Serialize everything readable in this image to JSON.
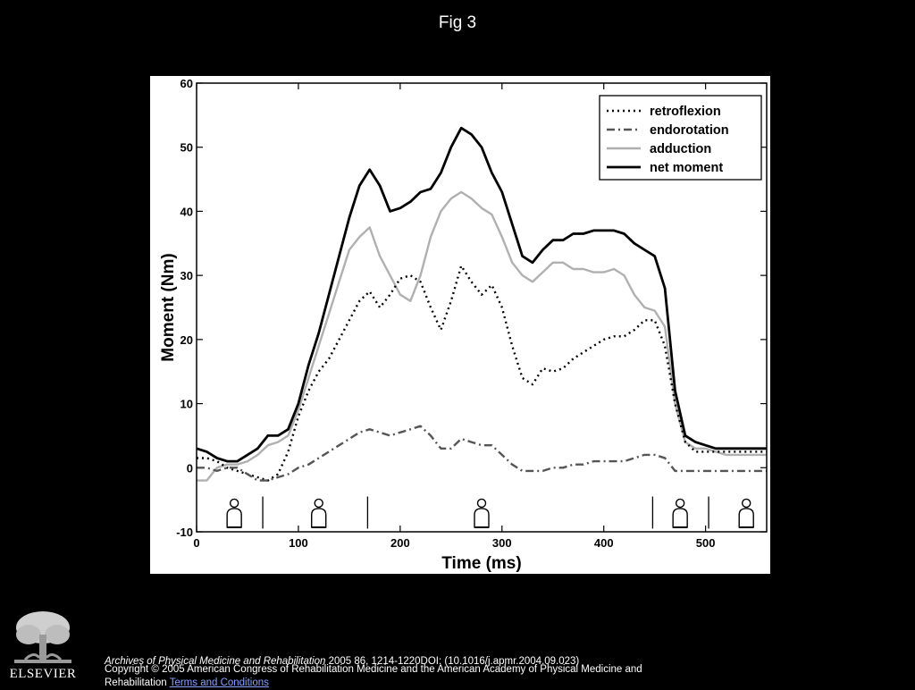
{
  "slide": {
    "title": "Fig 3"
  },
  "citation": {
    "journal": "Archives of Physical Medicine and Rehabilitation",
    "details": " 2005 86, 1214-1220DOI: (10.1016/j.apmr.2004.09.023)"
  },
  "copyright": {
    "text": "Copyright © 2005 American Congress of Rehabilitation Medicine and the American Academy of Physical Medicine and Rehabilitation ",
    "link_label": "Terms and Conditions"
  },
  "logo": {
    "word": "ELSEVIER"
  },
  "chart_data": {
    "type": "line",
    "xlabel": "Time (ms)",
    "ylabel": "Moment (Nm)",
    "xlim": [
      0,
      560
    ],
    "ylim": [
      -10,
      60
    ],
    "xticks": [
      0,
      100,
      200,
      300,
      400,
      500
    ],
    "yticks": [
      -10,
      0,
      10,
      20,
      30,
      40,
      50,
      60
    ],
    "grid": false,
    "legend_position": "top-right",
    "phase_markers_ms": [
      65,
      168,
      448,
      503
    ],
    "phase_figures_ms": [
      37,
      120,
      280,
      475,
      540
    ],
    "series": [
      {
        "name": "retroflexion",
        "style": "dotted",
        "color": "#000000",
        "x": [
          0,
          10,
          20,
          30,
          40,
          50,
          60,
          70,
          80,
          90,
          100,
          110,
          120,
          130,
          140,
          150,
          160,
          170,
          180,
          190,
          200,
          210,
          220,
          230,
          240,
          250,
          260,
          270,
          280,
          290,
          300,
          310,
          320,
          330,
          340,
          350,
          360,
          370,
          380,
          390,
          400,
          410,
          420,
          430,
          440,
          450,
          460,
          470,
          480,
          490,
          500,
          510,
          520,
          530,
          540,
          550,
          560
        ],
        "y": [
          1.5,
          1.5,
          1,
          0,
          -0.5,
          -1,
          -1.5,
          -2,
          -1,
          2.5,
          8,
          12,
          15,
          17,
          20,
          23,
          26,
          27.5,
          25,
          27,
          29.5,
          30,
          29,
          25,
          21.5,
          26,
          31.5,
          29,
          27,
          28.5,
          25,
          19,
          14,
          13,
          15.5,
          15,
          15.5,
          17,
          18,
          19,
          20,
          20.5,
          20.5,
          21.5,
          23,
          23,
          19,
          10,
          4,
          2.5,
          2.5,
          2.5,
          2.5,
          2.5,
          2.5,
          2.5,
          2.5
        ]
      },
      {
        "name": "endorotation",
        "style": "dashdot",
        "color": "#555555",
        "x": [
          0,
          10,
          20,
          30,
          40,
          50,
          60,
          70,
          80,
          90,
          100,
          110,
          120,
          130,
          140,
          150,
          160,
          170,
          180,
          190,
          200,
          210,
          220,
          230,
          240,
          250,
          260,
          270,
          280,
          290,
          300,
          310,
          320,
          330,
          340,
          350,
          360,
          370,
          380,
          390,
          400,
          410,
          420,
          430,
          440,
          450,
          460,
          470,
          480,
          490,
          500,
          510,
          520,
          530,
          540,
          550,
          560
        ],
        "y": [
          0,
          0,
          -0.5,
          0,
          0,
          -1,
          -2,
          -2,
          -1.5,
          -1,
          0,
          0.5,
          1.5,
          2.5,
          3.5,
          4.5,
          5.5,
          6,
          5.5,
          5,
          5.5,
          6,
          6.5,
          5,
          3,
          3,
          4.5,
          4,
          3.5,
          3.5,
          2,
          0.5,
          -0.5,
          -0.5,
          -0.5,
          0,
          0,
          0.5,
          0.5,
          1,
          1,
          1,
          1,
          1.5,
          2,
          2,
          1.5,
          -0.5,
          -0.5,
          -0.5,
          -0.5,
          -0.5,
          -0.5,
          -0.5,
          -0.5,
          -0.5,
          -0.5
        ]
      },
      {
        "name": "adduction",
        "style": "solid",
        "color": "#b0b0b0",
        "x": [
          0,
          10,
          20,
          30,
          40,
          50,
          60,
          70,
          80,
          90,
          100,
          110,
          120,
          130,
          140,
          150,
          160,
          170,
          180,
          190,
          200,
          210,
          220,
          230,
          240,
          250,
          260,
          270,
          280,
          290,
          300,
          310,
          320,
          330,
          340,
          350,
          360,
          370,
          380,
          390,
          400,
          410,
          420,
          430,
          440,
          450,
          460,
          470,
          480,
          490,
          500,
          510,
          520,
          530,
          540,
          550,
          560
        ],
        "y": [
          -2,
          -2,
          0,
          0.5,
          0.5,
          1,
          2,
          3.5,
          4,
          5,
          9,
          14,
          19,
          24,
          29,
          34,
          36,
          37.5,
          33,
          30,
          27,
          26,
          30,
          36,
          40,
          42,
          43,
          42,
          40.5,
          39.5,
          36,
          32,
          30,
          29,
          30.5,
          32,
          32,
          31,
          31,
          30.5,
          30.5,
          31,
          30,
          27,
          25,
          24.5,
          22,
          10,
          4,
          3,
          3,
          2.5,
          2,
          2,
          2,
          2,
          2
        ]
      },
      {
        "name": "net moment",
        "style": "solid",
        "color": "#000000",
        "x": [
          0,
          10,
          20,
          30,
          40,
          50,
          60,
          70,
          80,
          90,
          100,
          110,
          120,
          130,
          140,
          150,
          160,
          170,
          180,
          190,
          200,
          210,
          220,
          230,
          240,
          250,
          260,
          270,
          280,
          290,
          300,
          310,
          320,
          330,
          340,
          350,
          360,
          370,
          380,
          390,
          400,
          410,
          420,
          430,
          440,
          450,
          460,
          470,
          480,
          490,
          500,
          510,
          520,
          530,
          540,
          550,
          560
        ],
        "y": [
          3,
          2.5,
          1.5,
          1,
          1,
          2,
          3,
          5,
          5,
          6,
          10,
          16,
          21,
          27,
          33,
          39,
          44,
          46.5,
          44,
          40,
          40.5,
          41.5,
          43,
          43.5,
          46,
          50,
          53,
          52,
          50,
          46,
          43,
          38,
          33,
          32,
          34,
          35.5,
          35.5,
          36.5,
          36.5,
          37,
          37,
          37,
          36.5,
          35,
          34,
          33,
          28,
          12,
          5,
          4,
          3.5,
          3,
          3,
          3,
          3,
          3,
          3
        ]
      }
    ]
  }
}
